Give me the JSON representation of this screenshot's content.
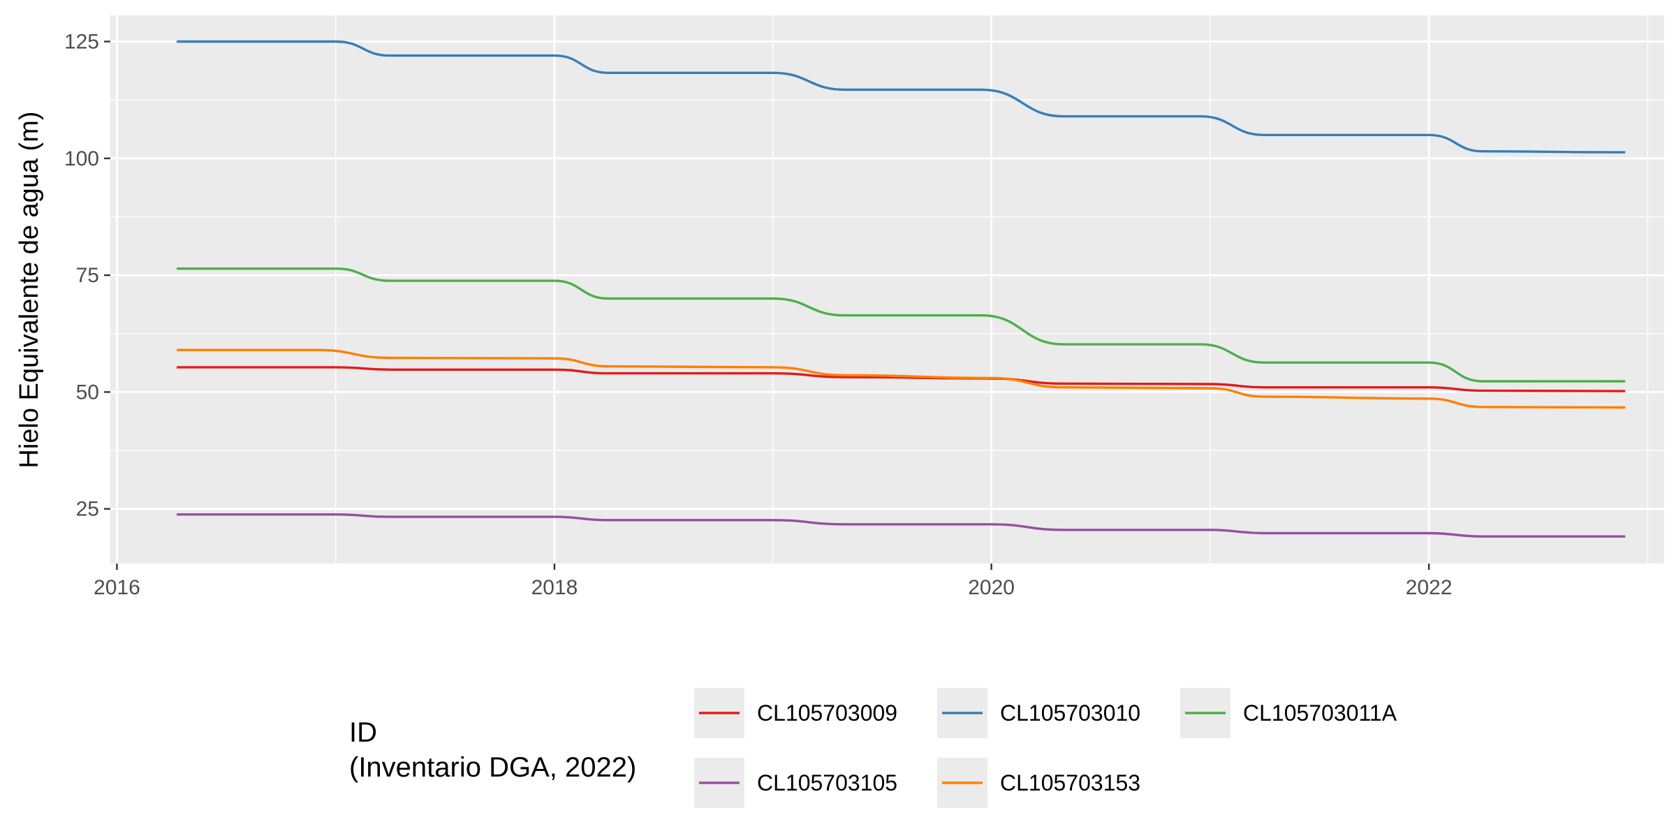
{
  "chart_data": {
    "type": "line",
    "ylabel": "Hielo Equivalente de agua (m)",
    "xlabel": "",
    "x_ticks": [
      "2016",
      "2018",
      "2020",
      "2022"
    ],
    "y_ticks": [
      "25",
      "50",
      "75",
      "100",
      "125"
    ],
    "xlim": [
      "2015-12-21",
      "2023-01-29"
    ],
    "ylim": [
      13.3,
      130.6
    ],
    "legend": {
      "position": "bottom",
      "title_lines": [
        "ID",
        "(Inventario DGA, 2022)"
      ]
    },
    "series": [
      {
        "name": "CL105703009",
        "color": "#e41a1c",
        "points": [
          [
            "2016-04-10",
            55.3
          ],
          [
            "2017-01-01",
            55.3
          ],
          [
            "2017-04-01",
            54.8
          ],
          [
            "2018-01-01",
            54.8
          ],
          [
            "2018-04-01",
            54.0
          ],
          [
            "2019-01-01",
            54.0
          ],
          [
            "2019-05-01",
            53.2
          ],
          [
            "2020-01-01",
            52.9
          ],
          [
            "2020-05-01",
            51.8
          ],
          [
            "2021-01-01",
            51.7
          ],
          [
            "2021-04-01",
            51.0
          ],
          [
            "2022-01-01",
            51.0
          ],
          [
            "2022-04-01",
            50.3
          ],
          [
            "2022-11-25",
            50.2
          ]
        ]
      },
      {
        "name": "CL105703010",
        "color": "#377eb8",
        "points": [
          [
            "2016-04-10",
            125.0
          ],
          [
            "2017-01-01",
            125.0
          ],
          [
            "2017-04-01",
            122.0
          ],
          [
            "2018-01-01",
            122.0
          ],
          [
            "2018-04-01",
            118.3
          ],
          [
            "2019-01-01",
            118.3
          ],
          [
            "2019-05-01",
            114.7
          ],
          [
            "2019-12-15",
            114.7
          ],
          [
            "2020-05-01",
            109.0
          ],
          [
            "2020-12-15",
            109.0
          ],
          [
            "2021-04-01",
            105.0
          ],
          [
            "2022-01-01",
            105.0
          ],
          [
            "2022-04-01",
            101.5
          ],
          [
            "2022-11-25",
            101.3
          ]
        ]
      },
      {
        "name": "CL105703011A",
        "color": "#4daf4a",
        "points": [
          [
            "2016-04-10",
            76.4
          ],
          [
            "2017-01-01",
            76.4
          ],
          [
            "2017-04-01",
            73.8
          ],
          [
            "2018-01-01",
            73.8
          ],
          [
            "2018-04-01",
            70.0
          ],
          [
            "2019-01-01",
            70.0
          ],
          [
            "2019-05-01",
            66.4
          ],
          [
            "2019-12-15",
            66.4
          ],
          [
            "2020-05-01",
            60.2
          ],
          [
            "2020-12-15",
            60.2
          ],
          [
            "2021-04-01",
            56.3
          ],
          [
            "2022-01-01",
            56.3
          ],
          [
            "2022-04-01",
            52.3
          ],
          [
            "2022-11-25",
            52.3
          ]
        ]
      },
      {
        "name": "CL105703105",
        "color": "#984ea3",
        "points": [
          [
            "2016-04-10",
            23.8
          ],
          [
            "2017-01-01",
            23.8
          ],
          [
            "2017-04-01",
            23.3
          ],
          [
            "2018-01-01",
            23.3
          ],
          [
            "2018-04-01",
            22.6
          ],
          [
            "2019-01-01",
            22.6
          ],
          [
            "2019-05-01",
            21.7
          ],
          [
            "2020-01-01",
            21.7
          ],
          [
            "2020-05-01",
            20.5
          ],
          [
            "2021-01-01",
            20.5
          ],
          [
            "2021-04-01",
            19.8
          ],
          [
            "2022-01-01",
            19.8
          ],
          [
            "2022-04-01",
            19.1
          ],
          [
            "2022-11-25",
            19.1
          ]
        ]
      },
      {
        "name": "CL105703153",
        "color": "#ff7f00",
        "points": [
          [
            "2016-04-10",
            59.0
          ],
          [
            "2016-12-01",
            59.0
          ],
          [
            "2017-04-01",
            57.3
          ],
          [
            "2018-01-01",
            57.2
          ],
          [
            "2018-04-01",
            55.5
          ],
          [
            "2019-01-01",
            55.3
          ],
          [
            "2019-05-01",
            53.6
          ],
          [
            "2020-01-01",
            53.0
          ],
          [
            "2020-05-01",
            51.0
          ],
          [
            "2021-01-01",
            50.8
          ],
          [
            "2021-04-01",
            49.0
          ],
          [
            "2022-01-01",
            48.6
          ],
          [
            "2022-04-01",
            46.8
          ],
          [
            "2022-11-25",
            46.7
          ]
        ]
      }
    ]
  }
}
